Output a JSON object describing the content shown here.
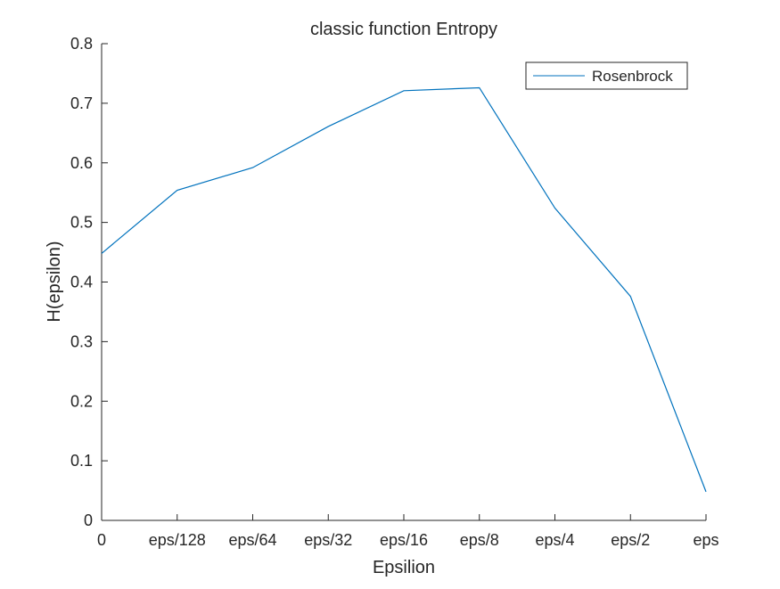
{
  "chart_data": {
    "type": "line",
    "title": "classic function Entropy",
    "xlabel": "Epsilion",
    "ylabel": "H(epsilon)",
    "categories": [
      "0",
      "eps/128",
      "eps/64",
      "eps/32",
      "eps/16",
      "eps/8",
      "eps/4",
      "eps/2",
      "eps"
    ],
    "series": [
      {
        "name": "Rosenbrock",
        "color": "#0072BD",
        "values": [
          0.448,
          0.554,
          0.592,
          0.661,
          0.721,
          0.726,
          0.524,
          0.376,
          0.048
        ]
      }
    ],
    "ylim": [
      0,
      0.8
    ],
    "yticks": [
      0,
      0.1,
      0.2,
      0.3,
      0.4,
      0.5,
      0.6,
      0.7,
      0.8
    ],
    "ytick_labels": [
      "0",
      "0.1",
      "0.2",
      "0.3",
      "0.4",
      "0.5",
      "0.6",
      "0.7",
      "0.8"
    ],
    "grid": false,
    "legend_position": "top-right",
    "axis_color": "#262626",
    "background": "#ffffff"
  }
}
